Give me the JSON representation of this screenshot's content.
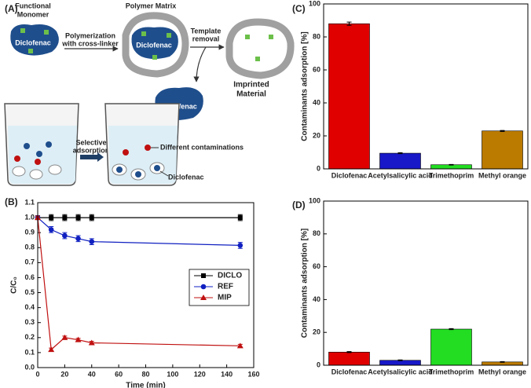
{
  "diagram": {
    "panel_label": "(A)",
    "functional_monomer": [
      "Functional",
      "Monomer"
    ],
    "polymer_matrix": "Polymer Matrix",
    "polymerization": [
      "Polymerization",
      "with cross-linker"
    ],
    "template_removal": [
      "Template",
      "removal"
    ],
    "imprinted_material": [
      "Imprinted",
      "Material"
    ],
    "diclofenac_1": "Diclofenac",
    "diclofenac_2": "Diclofenac",
    "diclofenac_3": "Diclofenac",
    "selective_adsorption": [
      "Selective",
      "adsorption"
    ],
    "different_contaminations": "Different contaminations",
    "diclofenac_4": "Diclofenac"
  },
  "chart_data": [
    {
      "type": "line",
      "panel_label": "(B)",
      "xlabel": "Time (min)",
      "ylabel": "C/C₀",
      "x": [
        0,
        10,
        20,
        30,
        40,
        150
      ],
      "series": [
        {
          "name": "DICLO",
          "color": "#000000",
          "marker": "square",
          "values": [
            1.0,
            1.0,
            1.0,
            1.0,
            1.0,
            1.0
          ],
          "errors": [
            0.01,
            0.02,
            0.02,
            0.02,
            0.02,
            0.02
          ]
        },
        {
          "name": "REF",
          "color": "#1020c0",
          "marker": "circle",
          "values": [
            1.0,
            0.92,
            0.88,
            0.86,
            0.84,
            0.815
          ],
          "errors": [
            0.01,
            0.02,
            0.02,
            0.02,
            0.02,
            0.02
          ]
        },
        {
          "name": "MIP",
          "color": "#c01010",
          "marker": "triangle",
          "values": [
            1.0,
            0.12,
            0.2,
            0.185,
            0.165,
            0.145
          ],
          "errors": [
            0.01,
            0.01,
            0.01,
            0.01,
            0.01,
            0.01
          ]
        }
      ],
      "xlim": [
        0,
        160
      ],
      "xticks": [
        0,
        20,
        40,
        60,
        80,
        100,
        120,
        140,
        160
      ],
      "ylim": [
        0,
        1.1
      ],
      "yticks": [
        {
          "value": 0,
          "label": "0.0"
        },
        0.1,
        0.2,
        0.3,
        0.4,
        0.5,
        0.6,
        0.7,
        0.8,
        0.9,
        {
          "value": 1,
          "label": "1.0"
        },
        1.1
      ],
      "legend": "center right"
    },
    {
      "type": "bar",
      "panel_label": "(C)",
      "ylabel": "Contaminants adsorption [%]",
      "categories": [
        "Diclofenac",
        "Acetylsalicylic acid",
        "Trimethoprim",
        "Methyl orange"
      ],
      "values": [
        88,
        9.5,
        2.5,
        23
      ],
      "errors": [
        1,
        0.3,
        0.2,
        0.3
      ],
      "colors": [
        "#e00000",
        "#1818c8",
        "#22dd22",
        "#bb7a00"
      ],
      "ylim": [
        0,
        100
      ],
      "yticks": [
        0,
        20,
        40,
        60,
        80,
        100
      ]
    },
    {
      "type": "bar",
      "panel_label": "(D)",
      "ylabel": "Contaminants adsorption [%]",
      "categories": [
        "Diclofenac",
        "Acetylsalicylic acid",
        "Trimethoprim",
        "Methyl orange"
      ],
      "values": [
        8,
        3,
        22,
        2
      ],
      "errors": [
        0.3,
        0.2,
        0.3,
        0.2
      ],
      "colors": [
        "#e00000",
        "#1818c8",
        "#22dd22",
        "#bb7a00"
      ],
      "ylim": [
        0,
        100
      ],
      "yticks": [
        0,
        20,
        40,
        60,
        80,
        100
      ]
    }
  ]
}
